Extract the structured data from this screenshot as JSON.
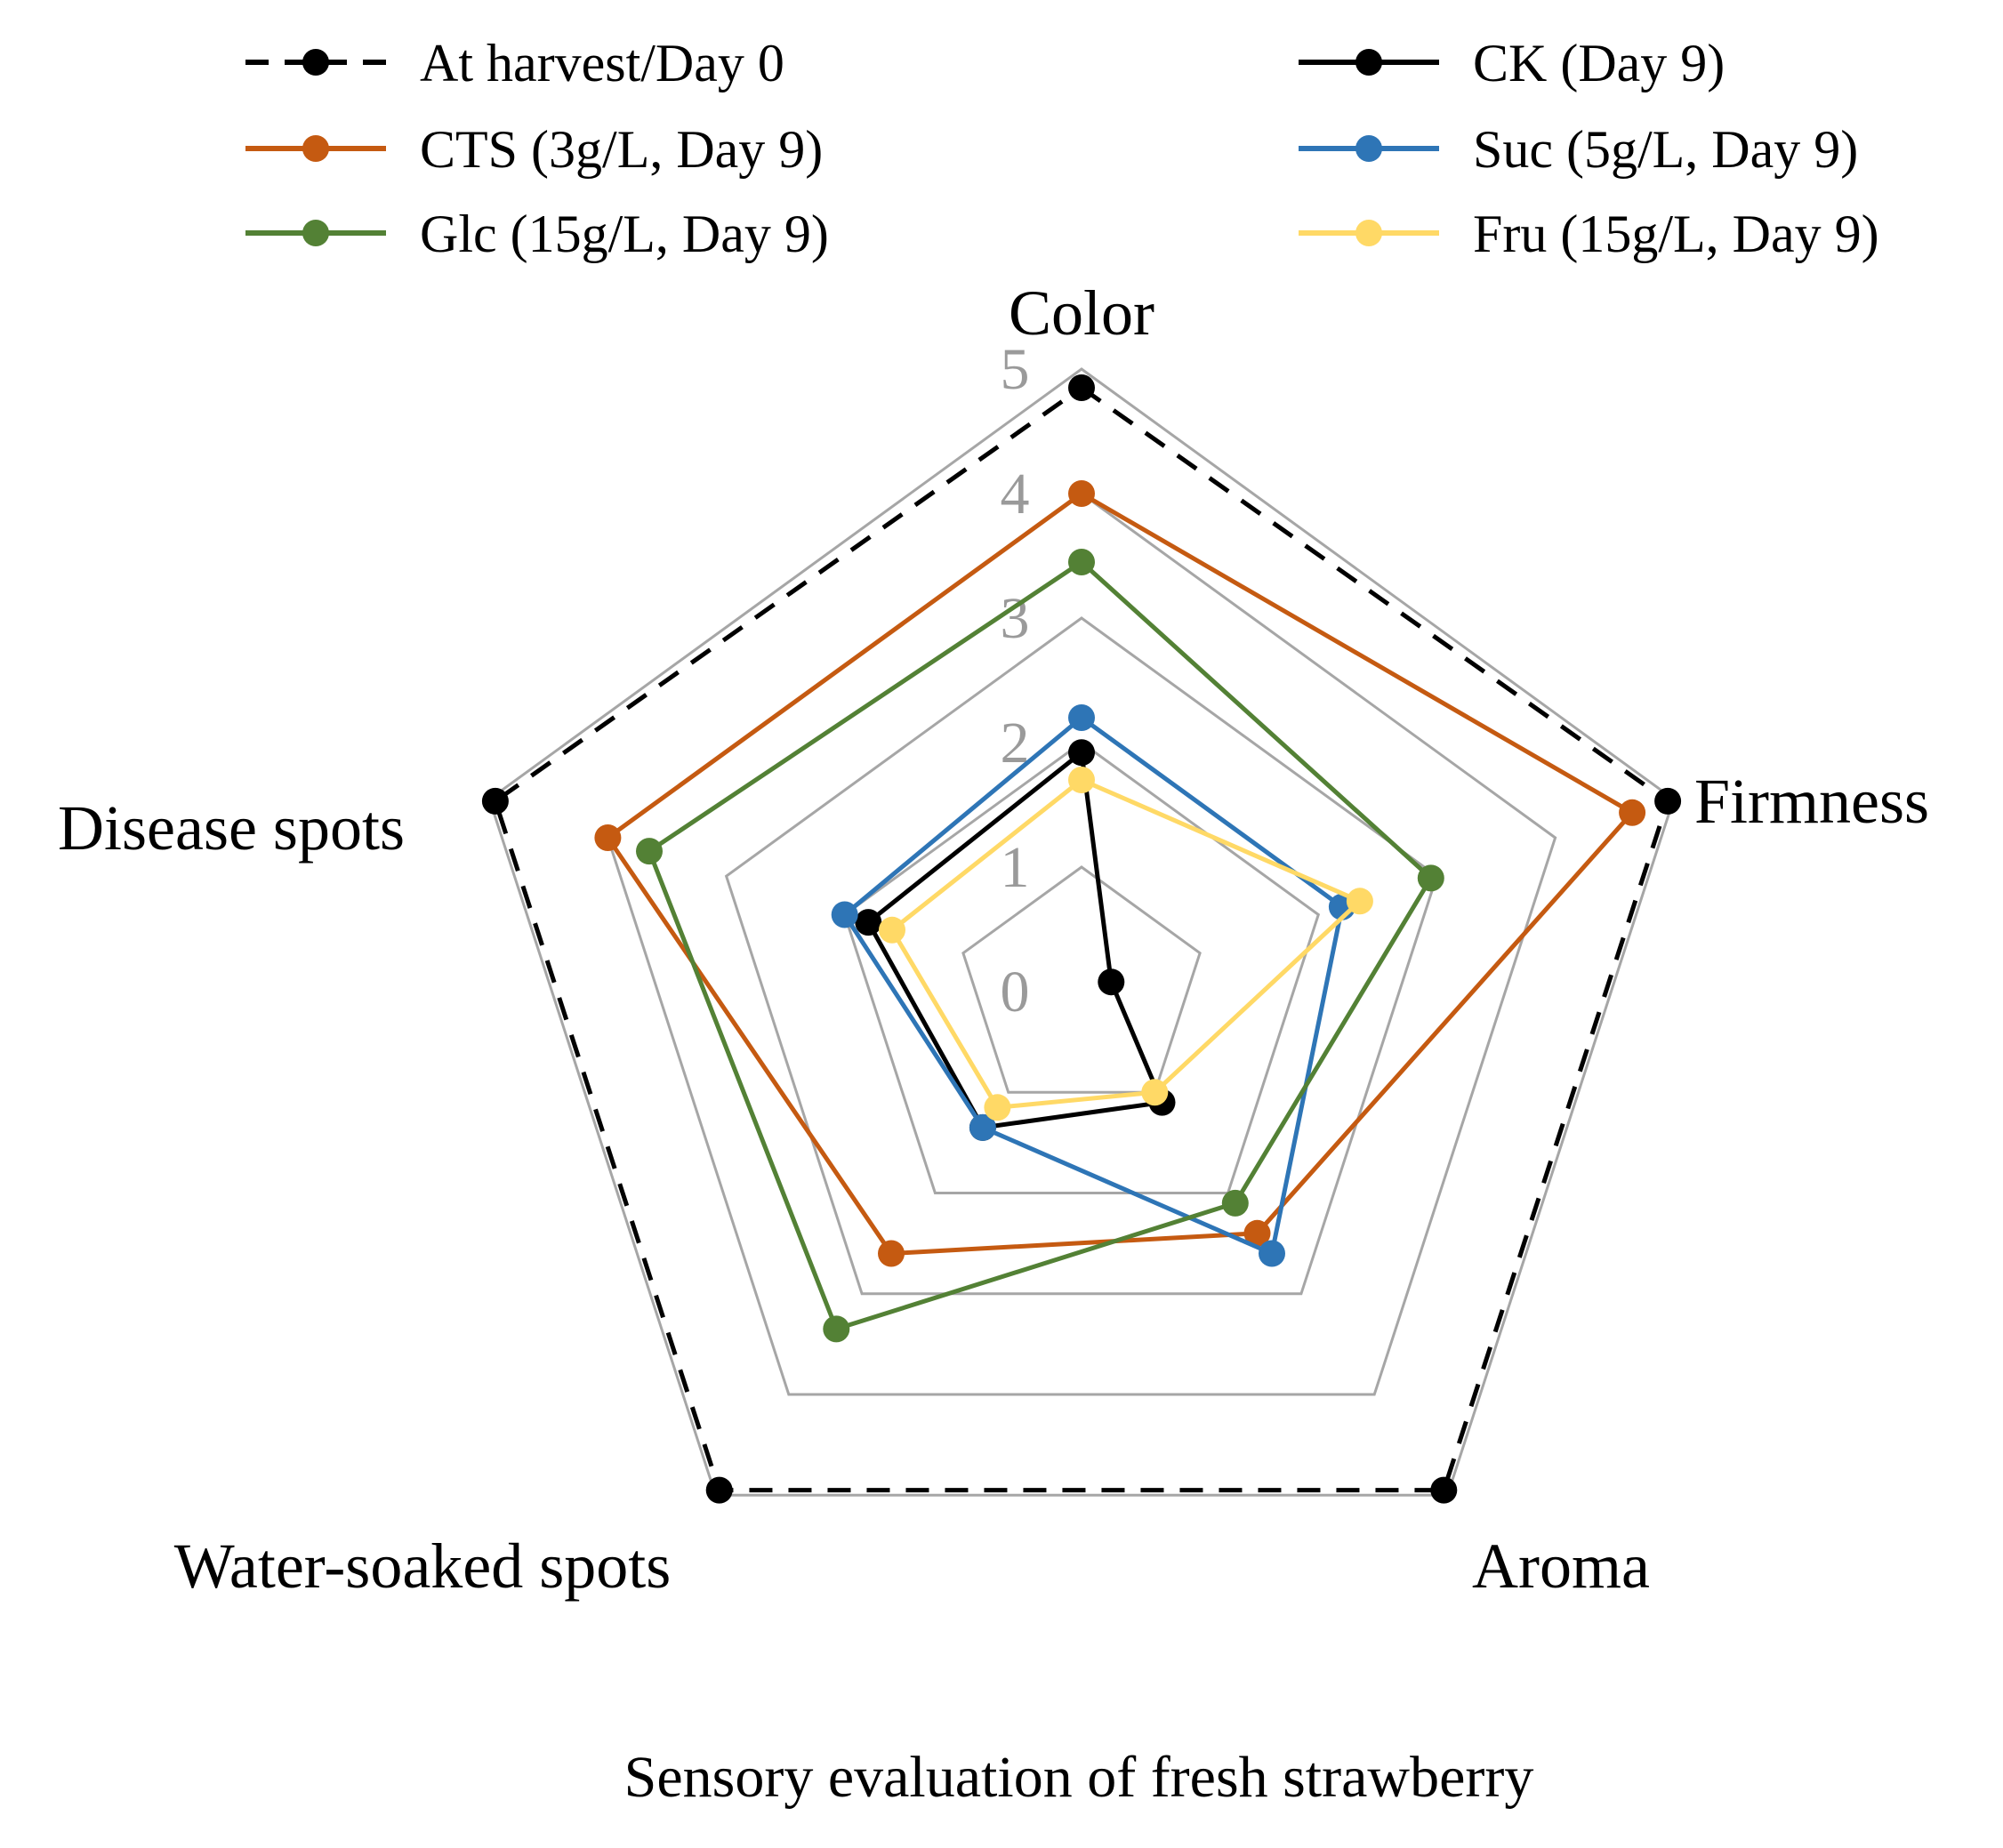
{
  "chart_data": {
    "type": "radar",
    "title": "Sensory evaluation of fresh strawberry",
    "axes": [
      "Color",
      "Firmness",
      "Aroma",
      "Water-soaked spots",
      "Disease spots"
    ],
    "rlim": [
      0,
      5
    ],
    "ticks": [
      "0",
      "1",
      "2",
      "3",
      "4",
      "5"
    ],
    "grid": true,
    "legend_position": "top",
    "series": [
      {
        "name": "At harvest/Day 0",
        "color": "#000000",
        "dashed": true,
        "values": [
          4.85,
          4.95,
          4.95,
          4.95,
          4.95
        ]
      },
      {
        "name": "CK (Day 9)",
        "color": "#000000",
        "dashed": false,
        "values": [
          1.92,
          0.25,
          1.1,
          1.35,
          1.8
        ]
      },
      {
        "name": "CTS (3g/L, Day 9)",
        "color": "#c55a11",
        "dashed": false,
        "values": [
          4.0,
          4.65,
          2.4,
          2.6,
          4.0
        ]
      },
      {
        "name": "Suc (5g/L, Day 9)",
        "color": "#2e75b6",
        "dashed": false,
        "values": [
          2.2,
          2.2,
          2.6,
          1.35,
          2.0
        ]
      },
      {
        "name": "Glc (15g/L, Day 9)",
        "color": "#538135",
        "dashed": false,
        "values": [
          3.45,
          2.95,
          2.1,
          3.35,
          3.65
        ]
      },
      {
        "name": "Fru (15g/L, Day 9)",
        "color": "#ffd966",
        "dashed": false,
        "values": [
          1.7,
          2.35,
          1.0,
          1.15,
          1.6
        ]
      }
    ]
  }
}
